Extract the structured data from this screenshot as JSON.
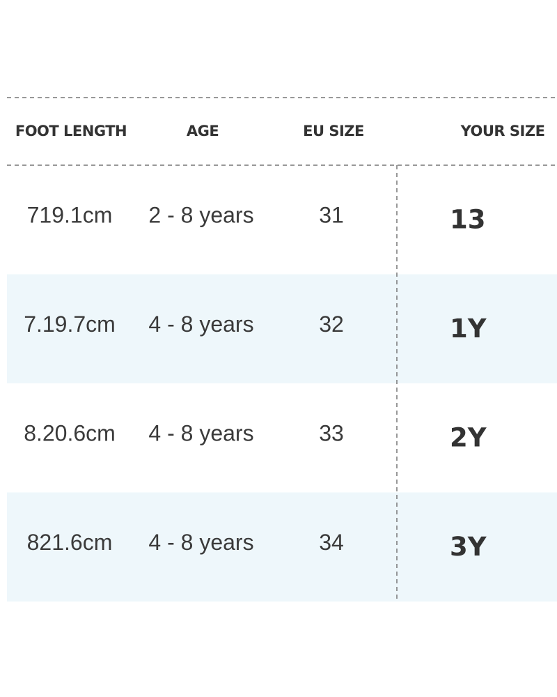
{
  "table": {
    "headers": [
      "FOOT LENGTH",
      "AGE",
      "EU SIZE",
      "YOUR SIZE"
    ],
    "rows": [
      [
        "719.1cm",
        "2 - 8 years",
        "31",
        "13"
      ],
      [
        "7.19.7cm",
        "4 - 8 years",
        "32",
        "1Y"
      ],
      [
        "8.20.6cm",
        "4 - 8 years",
        "33",
        "2Y"
      ],
      [
        "821.6cm",
        "4 - 8 years",
        "34",
        "3Y"
      ]
    ]
  }
}
